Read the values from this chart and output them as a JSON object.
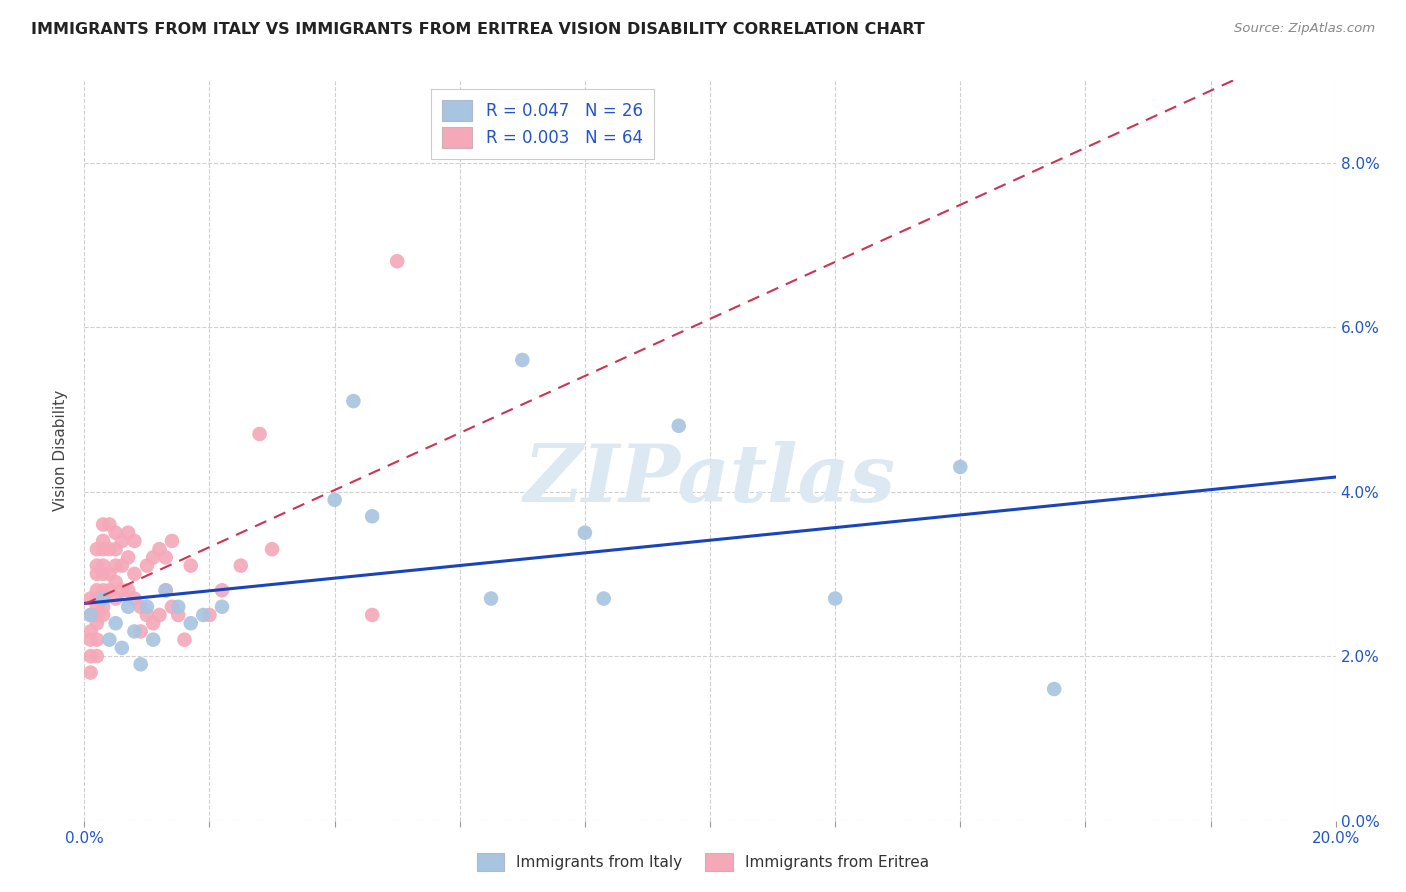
{
  "title": "IMMIGRANTS FROM ITALY VS IMMIGRANTS FROM ERITREA VISION DISABILITY CORRELATION CHART",
  "source": "Source: ZipAtlas.com",
  "ylabel": "Vision Disability",
  "xlim": [
    0.0,
    0.2
  ],
  "ylim": [
    0.0,
    0.09
  ],
  "xticks": [
    0.0,
    0.02,
    0.04,
    0.06,
    0.08,
    0.1,
    0.12,
    0.14,
    0.16,
    0.18,
    0.2
  ],
  "yticks": [
    0.0,
    0.02,
    0.04,
    0.06,
    0.08
  ],
  "italy_R": 0.047,
  "italy_N": 26,
  "eritrea_R": 0.003,
  "eritrea_N": 64,
  "italy_color": "#a8c4e0",
  "eritrea_color": "#f4a8b8",
  "italy_line_color": "#1a44bb",
  "eritrea_line_color": "#cc3355",
  "legend_italy": "Immigrants from Italy",
  "legend_eritrea": "Immigrants from Eritrea",
  "italy_x": [
    0.001,
    0.003,
    0.004,
    0.005,
    0.006,
    0.007,
    0.008,
    0.009,
    0.01,
    0.011,
    0.013,
    0.015,
    0.017,
    0.019,
    0.022,
    0.04,
    0.043,
    0.046,
    0.065,
    0.07,
    0.08,
    0.083,
    0.095,
    0.12,
    0.14,
    0.155
  ],
  "italy_y": [
    0.025,
    0.027,
    0.022,
    0.024,
    0.021,
    0.026,
    0.023,
    0.019,
    0.026,
    0.022,
    0.028,
    0.026,
    0.024,
    0.025,
    0.026,
    0.039,
    0.051,
    0.037,
    0.027,
    0.056,
    0.035,
    0.027,
    0.048,
    0.027,
    0.043,
    0.016
  ],
  "eritrea_x": [
    0.001,
    0.001,
    0.001,
    0.001,
    0.001,
    0.001,
    0.002,
    0.002,
    0.002,
    0.002,
    0.002,
    0.002,
    0.002,
    0.002,
    0.002,
    0.002,
    0.003,
    0.003,
    0.003,
    0.003,
    0.003,
    0.003,
    0.003,
    0.003,
    0.004,
    0.004,
    0.004,
    0.004,
    0.005,
    0.005,
    0.005,
    0.005,
    0.005,
    0.006,
    0.006,
    0.006,
    0.007,
    0.007,
    0.007,
    0.008,
    0.008,
    0.008,
    0.009,
    0.009,
    0.01,
    0.01,
    0.011,
    0.011,
    0.012,
    0.012,
    0.013,
    0.013,
    0.014,
    0.014,
    0.015,
    0.016,
    0.017,
    0.02,
    0.022,
    0.025,
    0.028,
    0.03,
    0.046,
    0.05
  ],
  "eritrea_y": [
    0.027,
    0.025,
    0.023,
    0.022,
    0.02,
    0.018,
    0.033,
    0.031,
    0.03,
    0.028,
    0.027,
    0.026,
    0.025,
    0.024,
    0.022,
    0.02,
    0.036,
    0.034,
    0.033,
    0.031,
    0.03,
    0.028,
    0.026,
    0.025,
    0.036,
    0.033,
    0.03,
    0.028,
    0.035,
    0.033,
    0.031,
    0.029,
    0.027,
    0.034,
    0.031,
    0.028,
    0.035,
    0.032,
    0.028,
    0.034,
    0.03,
    0.027,
    0.026,
    0.023,
    0.031,
    0.025,
    0.032,
    0.024,
    0.033,
    0.025,
    0.032,
    0.028,
    0.034,
    0.026,
    0.025,
    0.022,
    0.031,
    0.025,
    0.028,
    0.031,
    0.047,
    0.033,
    0.025,
    0.068
  ],
  "watermark_text": "ZIPatlas",
  "background_color": "#ffffff",
  "grid_color": "#d0d0d0"
}
